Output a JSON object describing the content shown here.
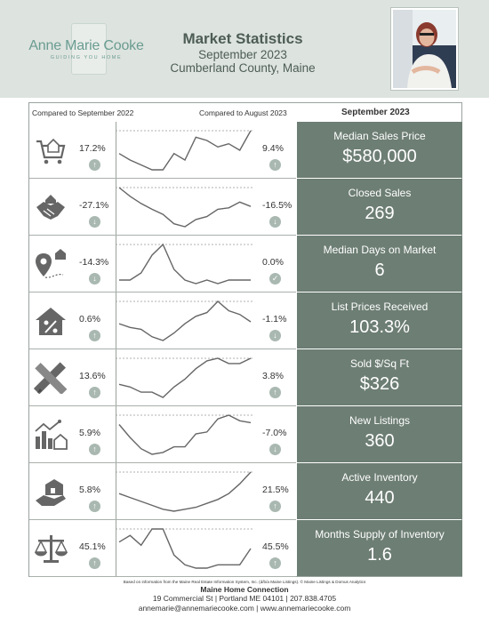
{
  "brand": {
    "logo_name": "Anne Marie Cooke",
    "logo_tagline": "GUIDING YOU HOME"
  },
  "header": {
    "title": "Market Statistics",
    "date": "September 2023",
    "location": "Cumberland County, Maine"
  },
  "columns": {
    "left": "Compared to September 2022",
    "middle": "Compared to August 2023",
    "right": "September 2023"
  },
  "colors": {
    "header_bg": "#dde3df",
    "panel_bg": "#6d7e74",
    "accent": "#6a9c90",
    "arrow": "#a9b8b1"
  },
  "metrics": [
    {
      "label": "Median Sales Price",
      "value": "$580,000",
      "yoy": "17.2%",
      "yoy_dir": "up",
      "mom": "9.4%",
      "mom_dir": "up",
      "icon": "shopping-cart-house-icon",
      "trend": [
        62,
        58,
        55,
        52,
        52,
        62,
        58,
        72,
        70,
        66,
        68,
        64,
        76
      ]
    },
    {
      "label": "Closed Sales",
      "value": "269",
      "yoy": "-27.1%",
      "yoy_dir": "down",
      "mom": "-16.5%",
      "mom_dir": "down",
      "icon": "handshake-house-icon",
      "trend": [
        84,
        72,
        62,
        54,
        47,
        34,
        30,
        40,
        44,
        54,
        56,
        64,
        58
      ]
    },
    {
      "label": "Median Days on Market",
      "value": "6",
      "yoy": "-14.3%",
      "yoy_dir": "down",
      "mom": "0.0%",
      "mom_dir": "flat",
      "icon": "location-pin-house-icon",
      "trend": [
        30,
        30,
        34,
        44,
        50,
        36,
        30,
        28,
        30,
        28,
        30,
        30,
        30
      ]
    },
    {
      "label": "List Prices Received",
      "value": "103.3%",
      "yoy": "0.6%",
      "yoy_dir": "up",
      "mom": "-1.1%",
      "mom_dir": "down",
      "icon": "house-percent-icon",
      "trend": [
        40,
        36,
        34,
        26,
        22,
        30,
        40,
        48,
        52,
        64,
        54,
        50,
        42
      ]
    },
    {
      "label": "Sold $/Sq Ft",
      "value": "$326",
      "yoy": "13.6%",
      "yoy_dir": "up",
      "mom": "3.8%",
      "mom_dir": "up",
      "icon": "ruler-pencil-icon",
      "trend": [
        42,
        40,
        36,
        36,
        32,
        40,
        46,
        54,
        60,
        62,
        58,
        58,
        62
      ]
    },
    {
      "label": "New Listings",
      "value": "360",
      "yoy": "5.9%",
      "yoy_dir": "up",
      "mom": "-7.0%",
      "mom_dir": "down",
      "icon": "bar-chart-house-icon",
      "trend": [
        64,
        50,
        38,
        32,
        34,
        40,
        40,
        54,
        56,
        70,
        74,
        68,
        66
      ]
    },
    {
      "label": "Active Inventory",
      "value": "440",
      "yoy": "5.8%",
      "yoy_dir": "up",
      "mom": "21.5%",
      "mom_dir": "up",
      "icon": "hand-house-icon",
      "trend": [
        70,
        66,
        62,
        58,
        54,
        52,
        54,
        56,
        60,
        64,
        70,
        80,
        92
      ]
    },
    {
      "label": "Months Supply of Inventory",
      "value": "1.6",
      "yoy": "45.1%",
      "yoy_dir": "up",
      "mom": "45.5%",
      "mom_dir": "up",
      "icon": "balance-scale-icon",
      "trend": [
        1.8,
        2.0,
        1.7,
        2.2,
        2.2,
        1.4,
        1.1,
        1.0,
        1.0,
        1.1,
        1.1,
        1.1,
        1.6
      ]
    }
  ],
  "footer": {
    "note": "Based on information from the Maine Real Estate Information System, Inc. (d/b/a Maine Listings). © Maine Listings & Domus Analytics",
    "company": "Maine Home Connection",
    "address": "19 Commercial St | Portland ME 04101 | 207.838.4705",
    "contact": "annemarie@annemariecooke.com | www.annemariecooke.com"
  }
}
